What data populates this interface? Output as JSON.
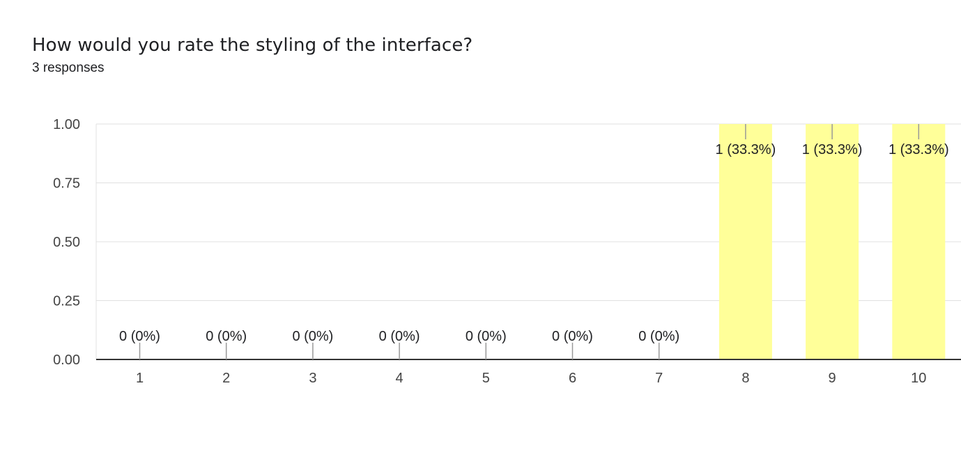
{
  "form": {
    "question": "How would you rate the styling of the interface?",
    "responses": "3 responses"
  },
  "colors": {
    "bar": "#ffff99",
    "axis": "#333333",
    "gridline": "#e0e0e0",
    "leader": "#999999"
  },
  "chart_data": {
    "type": "bar",
    "title": "",
    "xlabel": "",
    "ylabel": "",
    "categories": [
      "1",
      "2",
      "3",
      "4",
      "5",
      "6",
      "7",
      "8",
      "9",
      "10"
    ],
    "values": [
      0,
      0,
      0,
      0,
      0,
      0,
      0,
      1,
      1,
      1
    ],
    "data_labels": [
      "0 (0%)",
      "0 (0%)",
      "0 (0%)",
      "0 (0%)",
      "0 (0%)",
      "0 (0%)",
      "0 (0%)",
      "1 (33.3%)",
      "1 (33.3%)",
      "1 (33.3%)"
    ],
    "ylim": [
      0,
      1
    ],
    "yticks": [
      "0.00",
      "0.25",
      "0.50",
      "0.75",
      "1.00"
    ],
    "grid": true,
    "legend": "none"
  }
}
